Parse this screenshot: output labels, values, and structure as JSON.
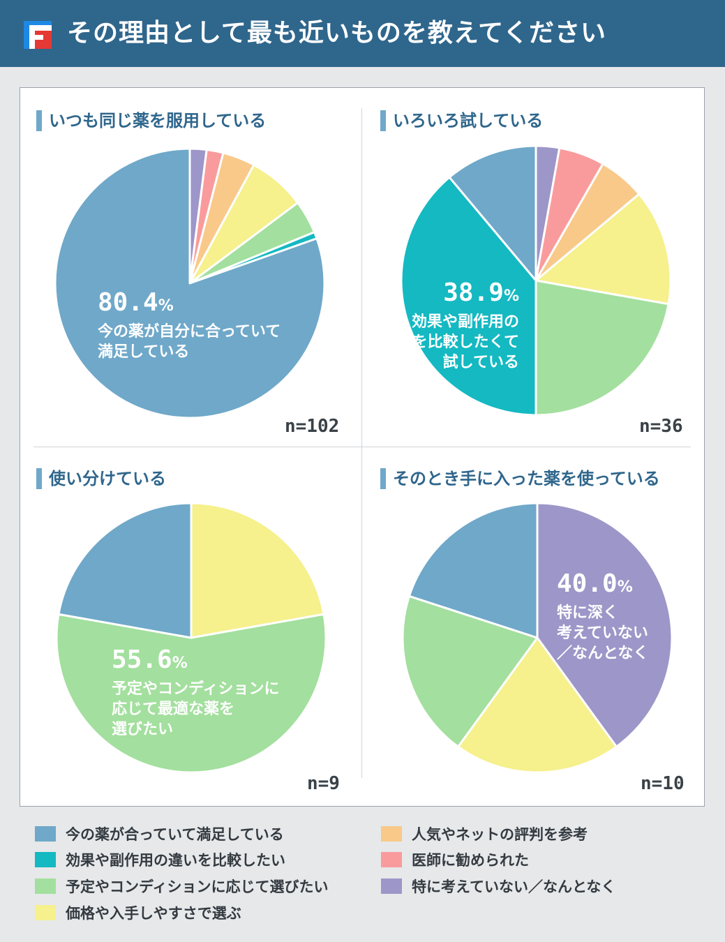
{
  "header": {
    "title": "その理由として最も近いものを教えてください"
  },
  "colors": {
    "satisfied": "#6fa8c9",
    "compare": "#14b9c2",
    "condition": "#a3df9e",
    "price": "#f6f08d",
    "reputation": "#f9c98a",
    "doctor": "#f99b9c",
    "nothing": "#9d96c8"
  },
  "legend": {
    "items": [
      {
        "key": "satisfied",
        "label": "今の薬が合っていて満足している"
      },
      {
        "key": "compare",
        "label": "効果や副作用の違いを比較したい"
      },
      {
        "key": "condition",
        "label": "予定やコンディションに応じて選びたい"
      },
      {
        "key": "price",
        "label": "価格や入手しやすさで選ぶ"
      },
      {
        "key": "reputation",
        "label": "人気やネットの評判を参考"
      },
      {
        "key": "doctor",
        "label": "医師に勧められた"
      },
      {
        "key": "nothing",
        "label": "特に考えていない／なんとなく"
      }
    ]
  },
  "chart_data": [
    {
      "type": "pie",
      "title": "いつも同じ薬を服用している",
      "n_label": "n=102",
      "slices": [
        {
          "key": "nothing",
          "value": 2.0
        },
        {
          "key": "doctor",
          "value": 2.0
        },
        {
          "key": "reputation",
          "value": 3.9
        },
        {
          "key": "price",
          "value": 6.9
        },
        {
          "key": "condition",
          "value": 4.0
        },
        {
          "key": "compare",
          "value": 0.8
        },
        {
          "key": "satisfied",
          "value": 80.4
        }
      ],
      "highlight": {
        "value": "80.4",
        "unit": "%",
        "lines": [
          "今の薬が自分に合っていて",
          "満足している"
        ]
      }
    },
    {
      "type": "pie",
      "title": "いろいろ試している",
      "n_label": "n=36",
      "slices": [
        {
          "key": "nothing",
          "value": 2.8
        },
        {
          "key": "doctor",
          "value": 5.5
        },
        {
          "key": "reputation",
          "value": 5.6
        },
        {
          "key": "price",
          "value": 13.9
        },
        {
          "key": "condition",
          "value": 22.2
        },
        {
          "key": "compare",
          "value": 38.9
        },
        {
          "key": "satisfied",
          "value": 11.1
        }
      ],
      "highlight": {
        "value": "38.9",
        "unit": "%",
        "lines": [
          "効果や副作用の",
          "違いを比較したくて",
          "試している"
        ]
      }
    },
    {
      "type": "pie",
      "title": "使い分けている",
      "n_label": "n=9",
      "slices": [
        {
          "key": "price",
          "value": 22.2
        },
        {
          "key": "condition",
          "value": 55.6
        },
        {
          "key": "satisfied",
          "value": 22.2
        }
      ],
      "highlight": {
        "value": "55.6",
        "unit": "%",
        "lines": [
          "予定やコンディションに",
          "応じて最適な薬を",
          "選びたい"
        ]
      }
    },
    {
      "type": "pie",
      "title": "そのとき手に入った薬を使っている",
      "n_label": "n=10",
      "slices": [
        {
          "key": "nothing",
          "value": 40.0
        },
        {
          "key": "price",
          "value": 20.0
        },
        {
          "key": "condition",
          "value": 20.0
        },
        {
          "key": "satisfied",
          "value": 20.0
        }
      ],
      "highlight": {
        "value": "40.0",
        "unit": "%",
        "lines": [
          "特に深く",
          "考えていない",
          "／なんとなく"
        ]
      }
    }
  ]
}
